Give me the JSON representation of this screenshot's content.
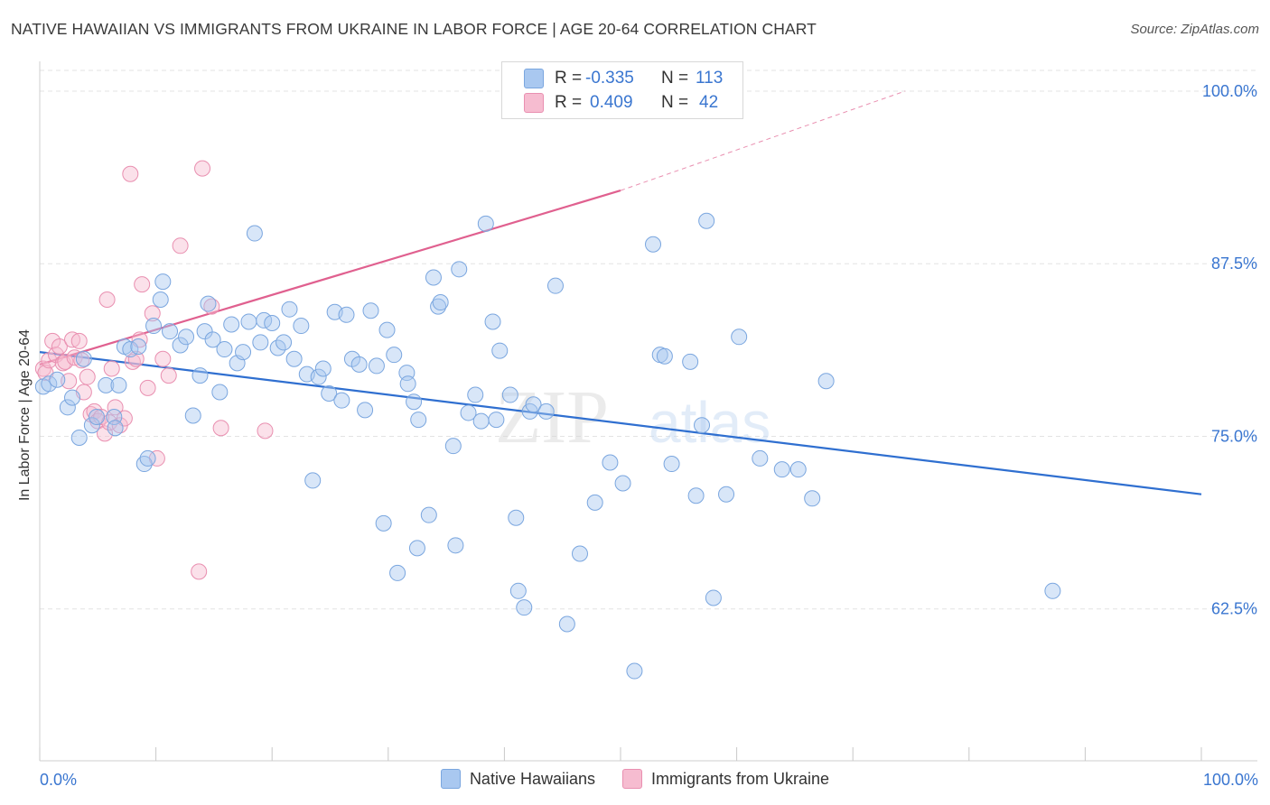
{
  "header": {
    "title": "NATIVE HAWAIIAN VS IMMIGRANTS FROM UKRAINE IN LABOR FORCE | AGE 20-64 CORRELATION CHART",
    "source": "Source: ZipAtlas.com"
  },
  "watermark": {
    "zip": "ZIP",
    "atlas": "atlas"
  },
  "stats": {
    "r_label": "R =",
    "n_label": "N =",
    "rows": [
      {
        "r": "-0.335",
        "n": "113"
      },
      {
        "r": "0.409",
        "n": "42"
      }
    ]
  },
  "legend": {
    "items": [
      "Native Hawaiians",
      "Immigrants from Ukraine"
    ]
  },
  "colors": {
    "blue_fill": "#a9c8f0",
    "blue_stroke": "#7aa6df",
    "blue_line": "#2f6fd0",
    "pink_fill": "#f6bcd0",
    "pink_stroke": "#e98fb0",
    "pink_line": "#e0608f",
    "tick_text": "#3a76d0",
    "grid": "#e3e3e3"
  },
  "chart_data": {
    "type": "scatter",
    "ylabel": "In Labor Force | Age 20-64",
    "xlim": [
      0,
      100
    ],
    "ylim": [
      51.5,
      101.5
    ],
    "x_tick_labels": [
      "0.0%",
      "100.0%"
    ],
    "y_ticks": [
      62.5,
      75.0,
      87.5,
      100.0
    ],
    "y_tick_labels": [
      "62.5%",
      "75.0%",
      "87.5%",
      "100.0%"
    ],
    "grid": true,
    "legend_position": "bottom",
    "series": [
      {
        "name": "Native Hawaiians",
        "r": -0.335,
        "n": 113,
        "trend": {
          "x": [
            0,
            100
          ],
          "y": [
            81.1,
            70.8
          ]
        },
        "points": [
          [
            0.3,
            78.6
          ],
          [
            0.8,
            78.8
          ],
          [
            1.5,
            79.1
          ],
          [
            2.4,
            77.1
          ],
          [
            2.8,
            77.8
          ],
          [
            3.4,
            74.9
          ],
          [
            3.8,
            80.6
          ],
          [
            4.5,
            75.8
          ],
          [
            4.9,
            76.4
          ],
          [
            5.7,
            78.7
          ],
          [
            6.4,
            76.4
          ],
          [
            6.5,
            75.6
          ],
          [
            6.8,
            78.7
          ],
          [
            7.3,
            81.5
          ],
          [
            7.8,
            81.3
          ],
          [
            8.5,
            81.5
          ],
          [
            9.0,
            73.0
          ],
          [
            9.3,
            73.4
          ],
          [
            9.8,
            83.0
          ],
          [
            10.4,
            84.9
          ],
          [
            10.6,
            86.2
          ],
          [
            11.2,
            82.6
          ],
          [
            12.1,
            81.6
          ],
          [
            12.6,
            82.2
          ],
          [
            13.2,
            76.5
          ],
          [
            13.8,
            79.4
          ],
          [
            14.2,
            82.6
          ],
          [
            14.5,
            84.6
          ],
          [
            14.9,
            82.0
          ],
          [
            15.5,
            78.2
          ],
          [
            15.9,
            81.3
          ],
          [
            16.5,
            83.1
          ],
          [
            17.0,
            80.3
          ],
          [
            17.5,
            81.1
          ],
          [
            18.0,
            83.3
          ],
          [
            18.5,
            89.7
          ],
          [
            19.0,
            81.8
          ],
          [
            19.3,
            83.4
          ],
          [
            20.0,
            83.2
          ],
          [
            20.5,
            81.4
          ],
          [
            21.0,
            81.8
          ],
          [
            21.5,
            84.2
          ],
          [
            21.9,
            80.6
          ],
          [
            22.5,
            83.0
          ],
          [
            23.0,
            79.5
          ],
          [
            23.5,
            71.8
          ],
          [
            24.0,
            79.3
          ],
          [
            24.4,
            79.9
          ],
          [
            24.9,
            78.1
          ],
          [
            25.4,
            84.0
          ],
          [
            26.0,
            77.6
          ],
          [
            26.4,
            83.8
          ],
          [
            26.9,
            80.6
          ],
          [
            27.5,
            80.2
          ],
          [
            28.0,
            76.9
          ],
          [
            28.5,
            84.1
          ],
          [
            29.0,
            80.1
          ],
          [
            29.6,
            68.7
          ],
          [
            29.9,
            82.7
          ],
          [
            30.5,
            80.9
          ],
          [
            30.8,
            65.1
          ],
          [
            31.6,
            79.6
          ],
          [
            31.7,
            78.8
          ],
          [
            32.2,
            77.5
          ],
          [
            32.5,
            66.9
          ],
          [
            32.6,
            76.2
          ],
          [
            33.5,
            69.3
          ],
          [
            33.9,
            86.5
          ],
          [
            34.3,
            84.4
          ],
          [
            34.5,
            84.7
          ],
          [
            35.6,
            74.3
          ],
          [
            35.8,
            67.1
          ],
          [
            36.1,
            87.1
          ],
          [
            36.9,
            76.7
          ],
          [
            37.5,
            78.0
          ],
          [
            38.0,
            76.1
          ],
          [
            38.4,
            90.4
          ],
          [
            39.0,
            83.3
          ],
          [
            39.3,
            76.2
          ],
          [
            39.6,
            81.2
          ],
          [
            40.5,
            78.0
          ],
          [
            41.0,
            69.1
          ],
          [
            41.2,
            63.8
          ],
          [
            41.7,
            62.6
          ],
          [
            42.2,
            76.8
          ],
          [
            42.5,
            77.3
          ],
          [
            43.6,
            76.8
          ],
          [
            44.4,
            85.9
          ],
          [
            45.4,
            61.4
          ],
          [
            46.5,
            66.5
          ],
          [
            47.8,
            70.2
          ],
          [
            49.1,
            73.1
          ],
          [
            50.2,
            71.6
          ],
          [
            51.2,
            58.0
          ],
          [
            52.8,
            88.9
          ],
          [
            53.4,
            80.9
          ],
          [
            53.8,
            80.8
          ],
          [
            54.4,
            73.0
          ],
          [
            56.0,
            80.4
          ],
          [
            56.5,
            70.7
          ],
          [
            57.0,
            75.8
          ],
          [
            57.4,
            90.6
          ],
          [
            58.0,
            63.3
          ],
          [
            59.1,
            70.8
          ],
          [
            60.2,
            82.2
          ],
          [
            62.0,
            73.4
          ],
          [
            63.9,
            72.6
          ],
          [
            65.3,
            72.6
          ],
          [
            66.5,
            70.5
          ],
          [
            67.7,
            79.0
          ],
          [
            87.2,
            63.8
          ]
        ]
      },
      {
        "name": "Immigrants from Ukraine",
        "r": 0.409,
        "n": 42,
        "trend": {
          "x": [
            0,
            50
          ],
          "y": [
            80.2,
            92.8
          ]
        },
        "trend_dashed": {
          "x": [
            50,
            74.5
          ],
          "y": [
            92.8,
            100.0
          ]
        },
        "points": [
          [
            0.3,
            79.9
          ],
          [
            0.5,
            79.6
          ],
          [
            0.8,
            80.5
          ],
          [
            1.1,
            81.9
          ],
          [
            1.4,
            80.9
          ],
          [
            1.7,
            81.5
          ],
          [
            2.0,
            80.3
          ],
          [
            2.2,
            80.4
          ],
          [
            2.5,
            79.0
          ],
          [
            2.8,
            82.0
          ],
          [
            3.0,
            80.7
          ],
          [
            3.4,
            81.9
          ],
          [
            3.6,
            80.5
          ],
          [
            3.8,
            78.2
          ],
          [
            4.1,
            79.3
          ],
          [
            4.4,
            76.6
          ],
          [
            4.7,
            76.8
          ],
          [
            5.0,
            76.1
          ],
          [
            5.3,
            76.4
          ],
          [
            5.6,
            75.2
          ],
          [
            5.8,
            84.9
          ],
          [
            6.0,
            76.0
          ],
          [
            6.2,
            79.9
          ],
          [
            6.5,
            77.1
          ],
          [
            6.9,
            75.8
          ],
          [
            7.3,
            76.3
          ],
          [
            7.8,
            94.0
          ],
          [
            8.0,
            80.4
          ],
          [
            8.3,
            80.6
          ],
          [
            8.6,
            82.0
          ],
          [
            8.8,
            86.0
          ],
          [
            9.3,
            78.5
          ],
          [
            9.7,
            83.9
          ],
          [
            10.1,
            73.4
          ],
          [
            10.6,
            80.6
          ],
          [
            11.1,
            79.4
          ],
          [
            12.1,
            88.8
          ],
          [
            13.7,
            65.2
          ],
          [
            14.0,
            94.4
          ],
          [
            14.8,
            84.4
          ],
          [
            15.6,
            75.6
          ],
          [
            19.4,
            75.4
          ]
        ]
      }
    ]
  }
}
